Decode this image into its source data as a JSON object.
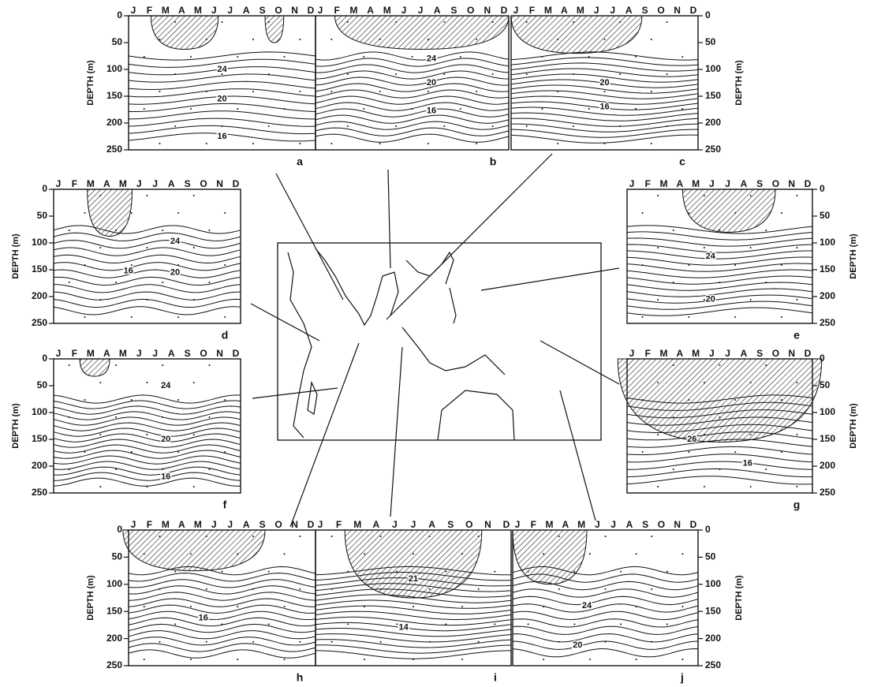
{
  "months": [
    "J",
    "F",
    "M",
    "A",
    "M",
    "J",
    "J",
    "A",
    "S",
    "O",
    "N",
    "D"
  ],
  "depth_axis_label": "DEPTH (m)",
  "depth_lim": [
    0,
    250
  ],
  "depth_ticks": [
    0,
    50,
    100,
    150,
    200,
    250
  ],
  "panels": [
    {
      "letter": "a",
      "contour_labels": [
        "24",
        "20",
        "16"
      ]
    },
    {
      "letter": "b",
      "contour_labels": [
        "24",
        "20",
        "16"
      ]
    },
    {
      "letter": "c",
      "contour_labels": [
        "20",
        "16"
      ]
    },
    {
      "letter": "d",
      "contour_labels": [
        "24",
        "16",
        "20"
      ]
    },
    {
      "letter": "e",
      "contour_labels": [
        "24",
        "20"
      ]
    },
    {
      "letter": "f",
      "contour_labels": [
        "24",
        "20",
        "16"
      ]
    },
    {
      "letter": "g",
      "contour_labels": [
        "26",
        "16"
      ]
    },
    {
      "letter": "h",
      "contour_labels": [
        "16"
      ]
    },
    {
      "letter": "i",
      "months": [
        "J",
        "F",
        "M",
        "A",
        "J",
        "J",
        "A",
        "S",
        "O",
        "N",
        "D"
      ],
      "contour_labels": [
        "21",
        "14"
      ]
    },
    {
      "letter": "j",
      "contour_labels": [
        "24",
        "20"
      ]
    }
  ]
}
